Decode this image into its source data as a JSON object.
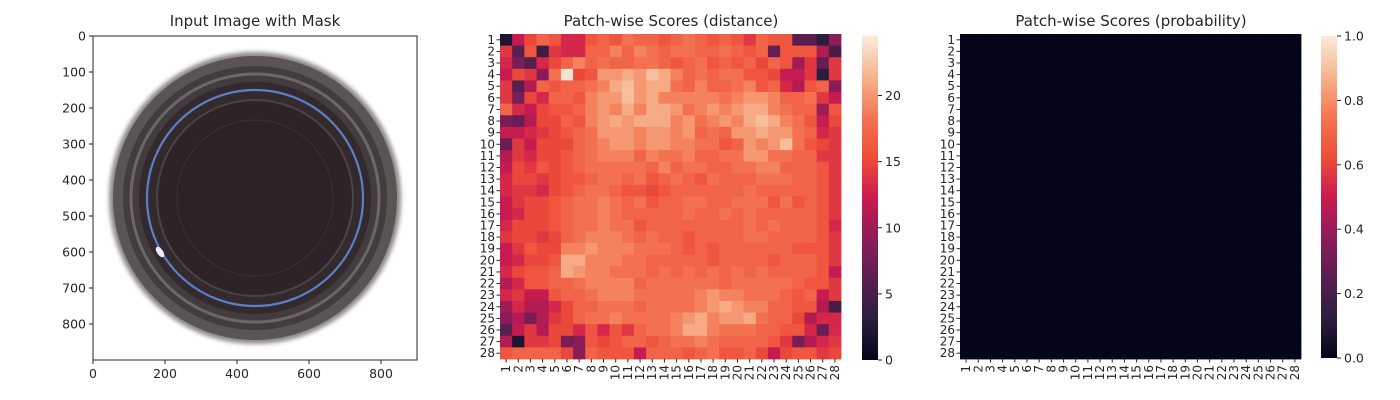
{
  "chart_data": [
    {
      "type": "image",
      "title": "Input Image with Mask",
      "xticks": [
        "0",
        "200",
        "400",
        "600",
        "800"
      ],
      "yticks": [
        "0",
        "100",
        "200",
        "300",
        "400",
        "500",
        "600",
        "700",
        "800"
      ],
      "xlim": [
        0,
        900
      ],
      "ylim": [
        900,
        0
      ],
      "image": {
        "subject": "petri-dish-top-view",
        "center": [
          450,
          450
        ],
        "outer_radius": 400,
        "inner_radius": 210,
        "mask_ring_radius": 300,
        "dish_color": "#2b2326",
        "rim_color": "#4a4547",
        "mask_color": "#5b80c8"
      }
    },
    {
      "type": "heatmap",
      "title": "Patch-wise Scores (distance)",
      "xticks": [
        "1",
        "2",
        "3",
        "4",
        "5",
        "6",
        "7",
        "8",
        "9",
        "10",
        "11",
        "12",
        "13",
        "14",
        "15",
        "16",
        "17",
        "18",
        "19",
        "20",
        "21",
        "22",
        "23",
        "24",
        "25",
        "26",
        "27",
        "28"
      ],
      "yticks": [
        "1",
        "2",
        "3",
        "4",
        "5",
        "6",
        "7",
        "8",
        "9",
        "10",
        "11",
        "12",
        "13",
        "14",
        "15",
        "16",
        "17",
        "18",
        "19",
        "20",
        "21",
        "22",
        "23",
        "24",
        "25",
        "26",
        "27",
        "28"
      ],
      "colorbar_ticks": [
        "0",
        "5",
        "10",
        "15",
        "20"
      ],
      "vmin": 0,
      "vmax": 24.5,
      "colormap": "rocket",
      "values": [
        [
          2,
          12,
          15,
          17,
          16,
          13,
          13,
          16,
          17,
          16,
          18,
          17,
          17,
          16,
          17,
          18,
          17,
          16,
          17,
          16,
          14,
          17,
          16,
          16,
          6,
          6,
          3,
          9
        ],
        [
          14,
          6,
          16,
          4,
          14,
          13,
          13,
          17,
          17,
          19,
          17,
          19,
          18,
          17,
          18,
          18,
          17,
          17,
          18,
          17,
          16,
          17,
          7,
          16,
          16,
          16,
          11,
          5
        ],
        [
          13,
          8,
          6,
          13,
          15,
          17,
          19,
          17,
          18,
          17,
          17,
          18,
          18,
          17,
          16,
          17,
          18,
          16,
          17,
          16,
          17,
          15,
          17,
          16,
          10,
          14,
          7,
          14
        ],
        [
          12,
          15,
          14,
          9,
          18,
          24,
          15,
          16,
          20,
          20,
          21,
          20,
          22,
          21,
          19,
          17,
          18,
          17,
          18,
          18,
          16,
          16,
          15,
          12,
          12,
          14,
          3,
          14
        ],
        [
          14,
          6,
          11,
          17,
          16,
          17,
          17,
          18,
          19,
          21,
          22,
          20,
          21,
          21,
          18,
          17,
          19,
          17,
          17,
          18,
          19,
          16,
          17,
          13,
          11,
          16,
          17,
          9
        ],
        [
          14,
          8,
          15,
          13,
          17,
          17,
          16,
          19,
          20,
          20,
          22,
          20,
          21,
          19,
          19,
          19,
          19,
          19,
          18,
          19,
          20,
          20,
          19,
          17,
          17,
          18,
          14,
          12
        ],
        [
          17,
          13,
          12,
          15,
          16,
          16,
          17,
          19,
          20,
          19,
          21,
          19,
          21,
          21,
          20,
          18,
          19,
          20,
          19,
          20,
          21,
          21,
          19,
          18,
          17,
          17,
          10,
          16
        ],
        [
          8,
          7,
          11,
          15,
          15,
          17,
          16,
          19,
          20,
          21,
          20,
          21,
          21,
          21,
          19,
          20,
          18,
          19,
          20,
          19,
          21,
          22,
          21,
          19,
          18,
          16,
          12,
          15
        ],
        [
          12,
          12,
          13,
          14,
          15,
          16,
          17,
          18,
          20,
          20,
          20,
          19,
          20,
          20,
          19,
          20,
          17,
          18,
          17,
          20,
          20,
          21,
          20,
          20,
          18,
          17,
          13,
          14
        ],
        [
          7,
          14,
          12,
          15,
          15,
          15,
          17,
          18,
          19,
          20,
          20,
          19,
          20,
          20,
          19,
          19,
          18,
          18,
          16,
          17,
          20,
          19,
          20,
          22,
          18,
          16,
          15,
          14
        ],
        [
          11,
          14,
          13,
          15,
          15,
          16,
          17,
          18,
          19,
          19,
          19,
          17,
          19,
          18,
          18,
          19,
          17,
          17,
          18,
          18,
          20,
          20,
          18,
          18,
          17,
          17,
          14,
          14
        ],
        [
          12,
          15,
          14,
          16,
          15,
          16,
          17,
          18,
          18,
          18,
          18,
          18,
          17,
          19,
          17,
          18,
          18,
          17,
          17,
          18,
          18,
          19,
          19,
          17,
          17,
          17,
          16,
          14
        ],
        [
          13,
          15,
          15,
          14,
          15,
          16,
          16,
          17,
          18,
          18,
          17,
          18,
          16,
          17,
          18,
          17,
          16,
          18,
          17,
          17,
          17,
          18,
          18,
          18,
          17,
          17,
          16,
          14
        ],
        [
          13,
          14,
          14,
          13,
          15,
          16,
          17,
          18,
          18,
          17,
          16,
          16,
          15,
          16,
          17,
          17,
          17,
          17,
          17,
          17,
          18,
          17,
          17,
          17,
          17,
          17,
          16,
          14
        ],
        [
          12,
          14,
          15,
          15,
          16,
          17,
          18,
          18,
          19,
          18,
          17,
          18,
          16,
          17,
          17,
          18,
          18,
          17,
          17,
          18,
          18,
          18,
          16,
          18,
          16,
          17,
          16,
          14
        ],
        [
          12,
          13,
          15,
          15,
          16,
          17,
          18,
          18,
          19,
          18,
          17,
          17,
          17,
          17,
          17,
          18,
          17,
          17,
          18,
          17,
          18,
          17,
          17,
          17,
          17,
          17,
          16,
          14
        ],
        [
          13,
          15,
          15,
          15,
          16,
          17,
          18,
          18,
          19,
          18,
          18,
          16,
          17,
          17,
          17,
          17,
          17,
          17,
          17,
          17,
          18,
          17,
          18,
          17,
          17,
          17,
          16,
          13
        ],
        [
          14,
          15,
          15,
          14,
          15,
          17,
          18,
          19,
          19,
          19,
          18,
          17,
          18,
          17,
          17,
          16,
          17,
          17,
          17,
          17,
          18,
          18,
          17,
          17,
          17,
          17,
          16,
          14
        ],
        [
          12,
          14,
          16,
          15,
          15,
          19,
          19,
          20,
          19,
          19,
          19,
          18,
          18,
          18,
          17,
          16,
          17,
          16,
          17,
          17,
          17,
          17,
          17,
          17,
          16,
          16,
          16,
          14
        ],
        [
          12,
          13,
          15,
          15,
          16,
          21,
          21,
          19,
          19,
          19,
          18,
          18,
          17,
          17,
          17,
          17,
          17,
          16,
          17,
          17,
          17,
          17,
          16,
          17,
          17,
          17,
          16,
          14
        ],
        [
          13,
          15,
          16,
          16,
          17,
          21,
          20,
          19,
          19,
          18,
          18,
          18,
          17,
          18,
          17,
          18,
          17,
          18,
          17,
          18,
          17,
          18,
          17,
          17,
          17,
          17,
          16,
          12
        ],
        [
          11,
          13,
          16,
          16,
          17,
          17,
          18,
          19,
          19,
          19,
          19,
          17,
          18,
          18,
          18,
          18,
          18,
          18,
          17,
          18,
          18,
          18,
          18,
          18,
          17,
          16,
          16,
          14
        ],
        [
          13,
          14,
          12,
          12,
          16,
          17,
          17,
          18,
          19,
          19,
          19,
          18,
          18,
          18,
          18,
          18,
          19,
          20,
          19,
          19,
          18,
          18,
          18,
          17,
          16,
          17,
          12,
          14
        ],
        [
          10,
          13,
          11,
          11,
          13,
          15,
          17,
          17,
          18,
          18,
          18,
          17,
          18,
          18,
          18,
          18,
          19,
          20,
          21,
          20,
          19,
          19,
          17,
          17,
          16,
          16,
          11,
          5
        ],
        [
          9,
          11,
          8,
          11,
          14,
          15,
          17,
          18,
          18,
          19,
          18,
          18,
          18,
          18,
          19,
          20,
          21,
          19,
          20,
          20,
          21,
          18,
          17,
          17,
          15,
          11,
          13,
          13
        ],
        [
          6,
          12,
          14,
          11,
          15,
          15,
          13,
          16,
          13,
          16,
          14,
          17,
          18,
          18,
          19,
          21,
          21,
          19,
          18,
          18,
          18,
          17,
          17,
          16,
          16,
          13,
          7,
          13
        ],
        [
          11,
          2,
          14,
          14,
          15,
          8,
          9,
          16,
          15,
          16,
          17,
          17,
          16,
          17,
          18,
          18,
          19,
          18,
          17,
          17,
          17,
          17,
          16,
          14,
          8,
          11,
          13,
          14
        ],
        [
          16,
          17,
          17,
          17,
          17,
          15,
          9,
          17,
          16,
          16,
          16,
          12,
          17,
          17,
          17,
          16,
          17,
          18,
          16,
          16,
          17,
          15,
          12,
          15,
          16,
          16,
          14,
          15
        ]
      ]
    },
    {
      "type": "heatmap",
      "title": "Patch-wise Scores (probability)",
      "xticks": [
        "1",
        "2",
        "3",
        "4",
        "5",
        "6",
        "7",
        "8",
        "9",
        "10",
        "11",
        "12",
        "13",
        "14",
        "15",
        "16",
        "17",
        "18",
        "19",
        "20",
        "21",
        "22",
        "23",
        "24",
        "25",
        "26",
        "27",
        "28"
      ],
      "yticks": [
        "1",
        "2",
        "3",
        "4",
        "5",
        "6",
        "7",
        "8",
        "9",
        "10",
        "11",
        "12",
        "13",
        "14",
        "15",
        "16",
        "17",
        "18",
        "19",
        "20",
        "21",
        "22",
        "23",
        "24",
        "25",
        "26",
        "27",
        "28"
      ],
      "colorbar_ticks": [
        "0.0",
        "0.2",
        "0.4",
        "0.6",
        "0.8",
        "1.0"
      ],
      "vmin": 0,
      "vmax": 1,
      "colormap": "rocket",
      "fill_value": 0
    }
  ]
}
